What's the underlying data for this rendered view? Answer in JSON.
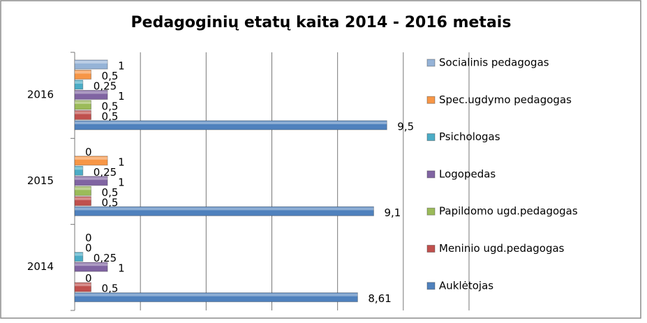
{
  "chart_data": {
    "type": "hbar",
    "title": "Pedagoginių etatų kaita 2014 - 2016 metais",
    "categories": [
      "2014",
      "2015",
      "2016"
    ],
    "series": [
      {
        "name": "Socialinis pedagogas",
        "color": "#95b3d7",
        "values": [
          0,
          0,
          1
        ],
        "value_labels": [
          "0",
          "0",
          "1"
        ]
      },
      {
        "name": "Spec.ugdymo pedagogas",
        "color": "#f79646",
        "values": [
          0,
          1,
          0.5
        ],
        "value_labels": [
          "0",
          "1",
          "0,5"
        ]
      },
      {
        "name": "Psichologas",
        "color": "#4bacc6",
        "values": [
          0.25,
          0.25,
          0.25
        ],
        "value_labels": [
          "0,25",
          "0,25",
          "0,25"
        ]
      },
      {
        "name": "Logopedas",
        "color": "#8064a2",
        "values": [
          1,
          1,
          1
        ],
        "value_labels": [
          "1",
          "1",
          "1"
        ]
      },
      {
        "name": "Papildomo ugd.pedagogas",
        "color": "#9bbb59",
        "values": [
          0,
          0.5,
          0.5
        ],
        "value_labels": [
          "0",
          "0,5",
          "0,5"
        ]
      },
      {
        "name": "Meninio ugd.pedagogas",
        "color": "#c0504d",
        "values": [
          0.5,
          0.5,
          0.5
        ],
        "value_labels": [
          "0,5",
          "0,5",
          "0,5"
        ]
      },
      {
        "name": "Auklėtojas",
        "color": "#4f81bd",
        "values": [
          8.61,
          9.1,
          9.5
        ],
        "value_labels": [
          "8,61",
          "9,1",
          "9,5"
        ]
      }
    ],
    "xlim": [
      0,
      12
    ],
    "xticks": [
      0,
      2,
      4,
      6,
      8,
      10,
      12
    ],
    "grid": true,
    "legend": "right"
  }
}
